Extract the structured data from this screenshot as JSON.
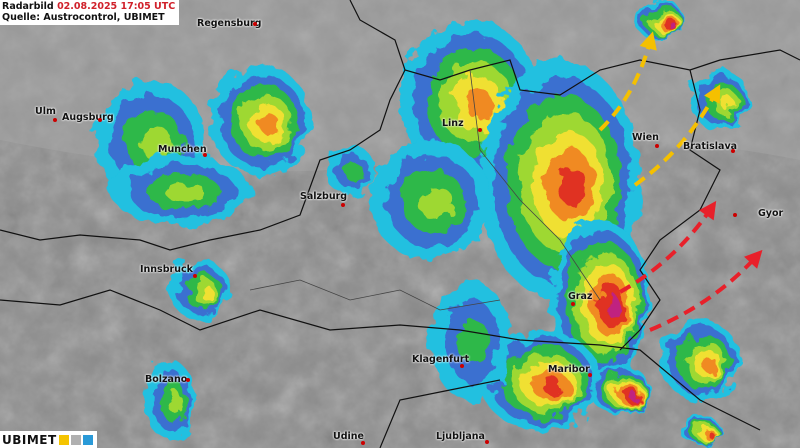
{
  "header": {
    "label": "Radarbild",
    "timestamp": "02.08.2025 17:05 UTC",
    "source": "Quelle: Austrocontrol, UBIMET"
  },
  "logo": {
    "text_a": "UBI",
    "text_b": "MET",
    "icons": [
      "sun-icon",
      "cloud-icon",
      "raindrop-icon"
    ],
    "colors": [
      "#f5c400",
      "#b0b0b0",
      "#2a9ad8"
    ]
  },
  "cities": [
    {
      "name": "Regensburg",
      "dot": "right"
    },
    {
      "name": "Ulm"
    },
    {
      "name": "Augsburg"
    },
    {
      "name": "Munchen"
    },
    {
      "name": "Linz"
    },
    {
      "name": "Wien"
    },
    {
      "name": "Bratislava"
    },
    {
      "name": "Salzburg"
    },
    {
      "name": "Gyor"
    },
    {
      "name": "Innsbruck"
    },
    {
      "name": "Graz"
    },
    {
      "name": "Klagenfurt"
    },
    {
      "name": "Maribor"
    },
    {
      "name": "Bolzano"
    },
    {
      "name": "Udine"
    },
    {
      "name": "Ljubljana"
    }
  ],
  "arrows": [
    {
      "color": "#f5c000",
      "direction": "north-east"
    },
    {
      "color": "#f5c000",
      "direction": "north-east"
    },
    {
      "color": "#e8202a",
      "direction": "north-east"
    },
    {
      "color": "#e8202a",
      "direction": "north-east"
    }
  ],
  "radar_colors": [
    "#20c0e0",
    "#3a6fd0",
    "#2fb84a",
    "#9ed830",
    "#f0e030",
    "#f08a20",
    "#e03020",
    "#c02080"
  ]
}
